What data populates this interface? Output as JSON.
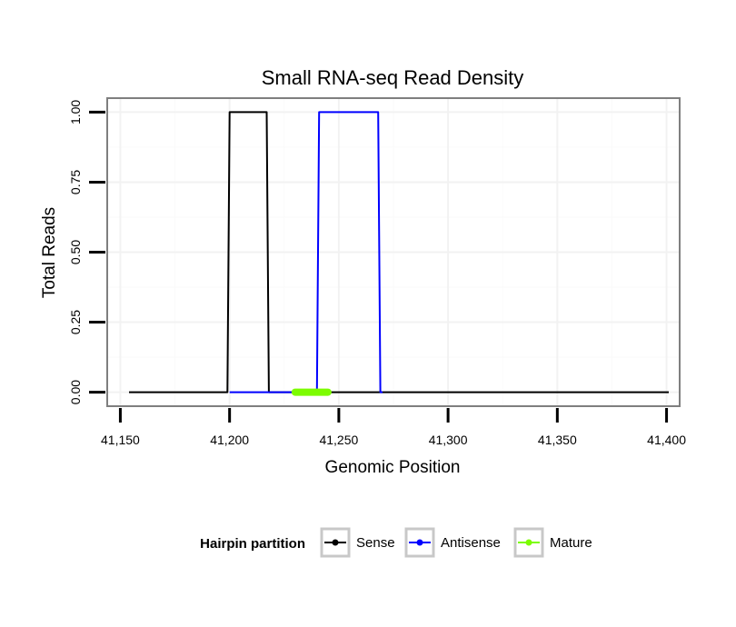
{
  "chart_data": {
    "type": "line",
    "title": "Small RNA-seq Read Density",
    "xlabel": "Genomic Position",
    "ylabel": "Total Reads",
    "xlim": [
      41144,
      41406
    ],
    "ylim": [
      -0.05,
      1.05
    ],
    "x_ticks": [
      41150,
      41200,
      41250,
      41300,
      41350,
      41400
    ],
    "x_tick_labels": [
      "41,150",
      "41,200",
      "41,250",
      "41,300",
      "41,350",
      "41,400"
    ],
    "y_ticks": [
      0,
      0.25,
      0.5,
      0.75,
      1.0
    ],
    "y_tick_labels": [
      "0.00",
      "0.25",
      "0.50",
      "0.75",
      "1.00"
    ],
    "grid": true,
    "legend_title": "Hairpin partition",
    "legend_position": "bottom",
    "series": [
      {
        "name": "Sense",
        "color": "#000000",
        "x": [
          41154,
          41199,
          41200,
          41217,
          41218,
          41401
        ],
        "y": [
          0,
          0,
          1,
          1,
          0,
          0
        ]
      },
      {
        "name": "Antisense",
        "color": "#0000ff",
        "x": [
          41200,
          41240,
          41241,
          41268,
          41269,
          41270
        ],
        "y": [
          0,
          0,
          1,
          1,
          0,
          0
        ]
      },
      {
        "name": "Mature",
        "color": "#7cfc00",
        "x": [
          41230,
          41245
        ],
        "y": [
          0,
          0
        ]
      }
    ]
  }
}
